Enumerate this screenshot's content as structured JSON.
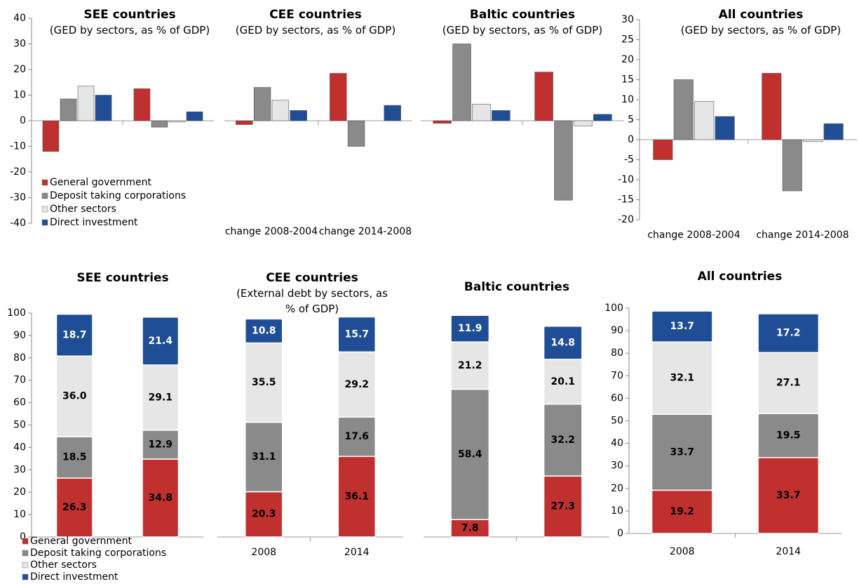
{
  "chart_data": [
    {
      "type": "grouped_bar",
      "title": "SEE countries",
      "subtitle": "(GED by sectors, as % of GDP)",
      "categories": [
        null,
        null
      ],
      "ylim": [
        -40,
        40
      ],
      "yticks": [
        -40,
        -30,
        -20,
        -10,
        0,
        10,
        20,
        30,
        40
      ],
      "legend": "lower left",
      "series": [
        {
          "name": "General government",
          "color": "#c0302e",
          "values": [
            -12,
            12.5
          ]
        },
        {
          "name": "Deposit taking corporations",
          "color": "#8a8a8a",
          "values": [
            8.5,
            -2.5
          ]
        },
        {
          "name": "Other sectors",
          "color": "#e6e6e6",
          "values": [
            13.5,
            -0.5
          ]
        },
        {
          "name": "Direct investment",
          "color": "#1f4e96",
          "values": [
            10,
            3.5
          ]
        }
      ]
    },
    {
      "type": "grouped_bar",
      "title": "CEE countries",
      "subtitle": "(GED by sectors, as % of GDP)",
      "categories": [
        "change 2008-2004",
        "change 2014-2008"
      ],
      "ylim": [
        -40,
        40
      ],
      "series": [
        {
          "color": "#c0302e",
          "values": [
            -1.5,
            18.5
          ]
        },
        {
          "color": "#8a8a8a",
          "values": [
            13,
            -10
          ]
        },
        {
          "color": "#e6e6e6",
          "values": [
            8,
            0
          ]
        },
        {
          "color": "#1f4e96",
          "values": [
            4,
            6
          ]
        }
      ]
    },
    {
      "type": "grouped_bar",
      "title": "Baltic countries",
      "subtitle": "(GED by sectors, as % of GDP)",
      "categories": [
        null,
        null
      ],
      "ylim": [
        -40,
        40
      ],
      "series": [
        {
          "color": "#c0302e",
          "values": [
            -1,
            19
          ]
        },
        {
          "color": "#8a8a8a",
          "values": [
            30,
            -31
          ]
        },
        {
          "color": "#e6e6e6",
          "values": [
            6.5,
            -2
          ]
        },
        {
          "color": "#1f4e96",
          "values": [
            4,
            2.5
          ]
        }
      ]
    },
    {
      "type": "grouped_bar",
      "title": "All countries",
      "subtitle": "(GED by sectors, as % of GDP)",
      "categories": [
        "change 2008-2004",
        "change 2014-2008"
      ],
      "ylim": [
        -20,
        30
      ],
      "yticks": [
        -20,
        -15,
        -10,
        -5,
        0,
        5,
        10,
        15,
        20,
        25,
        30
      ],
      "series": [
        {
          "color": "#c0302e",
          "values": [
            -5,
            16.6
          ]
        },
        {
          "color": "#8a8a8a",
          "values": [
            15,
            -12.8
          ]
        },
        {
          "color": "#e6e6e6",
          "values": [
            9.6,
            -0.5
          ]
        },
        {
          "color": "#1f4e96",
          "values": [
            5.8,
            4
          ]
        }
      ]
    },
    {
      "type": "stacked_bar",
      "title": "SEE countries",
      "categories": [
        null,
        null
      ],
      "ylim": [
        0,
        100
      ],
      "yticks": [
        0,
        10,
        20,
        30,
        40,
        50,
        60,
        70,
        80,
        90,
        100
      ],
      "legend": "lower left",
      "series": [
        {
          "name": "General government",
          "color": "#c0302e",
          "values": [
            26.3,
            34.8
          ],
          "value_labels": [
            "26.3",
            "34.8"
          ]
        },
        {
          "name": "Deposit taking corporations",
          "color": "#8a8a8a",
          "values": [
            18.5,
            12.9
          ],
          "value_labels": [
            "18.5",
            "12.9"
          ]
        },
        {
          "name": "Other sectors",
          "color": "#e6e6e6",
          "values": [
            36.0,
            29.1
          ],
          "value_labels": [
            "36.0",
            "29.1"
          ]
        },
        {
          "name": "Direct investment",
          "color": "#1f4e96",
          "values": [
            18.7,
            21.4
          ],
          "value_labels": [
            "18.7",
            "21.4"
          ]
        }
      ]
    },
    {
      "type": "stacked_bar",
      "title": "CEE countries",
      "subtitle": "(External debt by sectors, as % of GDP)",
      "categories": [
        "2008",
        "2014"
      ],
      "ylim": [
        0,
        100
      ],
      "series": [
        {
          "color": "#c0302e",
          "values": [
            20.3,
            36.1
          ],
          "value_labels": [
            "20.3",
            "36.1"
          ]
        },
        {
          "color": "#8a8a8a",
          "values": [
            31.1,
            17.6
          ],
          "value_labels": [
            "31.1",
            "17.6"
          ]
        },
        {
          "color": "#e6e6e6",
          "values": [
            35.5,
            29.2
          ],
          "value_labels": [
            "35.5",
            "29.2"
          ]
        },
        {
          "color": "#1f4e96",
          "values": [
            10.8,
            15.7
          ],
          "value_labels": [
            "10.8",
            "15.7"
          ]
        }
      ]
    },
    {
      "type": "stacked_bar",
      "title": "Baltic countries",
      "categories": [
        null,
        null
      ],
      "ylim": [
        0,
        100
      ],
      "series": [
        {
          "color": "#c0302e",
          "values": [
            7.8,
            27.3
          ],
          "value_labels": [
            "7.8",
            "27.3"
          ]
        },
        {
          "color": "#8a8a8a",
          "values": [
            58.4,
            32.2
          ],
          "value_labels": [
            "58.4",
            "32.2"
          ]
        },
        {
          "color": "#e6e6e6",
          "values": [
            21.2,
            20.1
          ],
          "value_labels": [
            "21.2",
            "20.1"
          ]
        },
        {
          "color": "#1f4e96",
          "values": [
            11.9,
            14.8
          ],
          "value_labels": [
            "11.9",
            "14.8"
          ]
        }
      ]
    },
    {
      "type": "stacked_bar",
      "title": "All countries",
      "categories": [
        "2008",
        "2014"
      ],
      "ylim": [
        0,
        100
      ],
      "yticks": [
        0,
        10,
        20,
        30,
        40,
        50,
        60,
        70,
        80,
        90,
        100
      ],
      "series": [
        {
          "color": "#c0302e",
          "values": [
            19.2,
            33.7
          ],
          "value_labels": [
            "19.2",
            "33.7"
          ]
        },
        {
          "color": "#8a8a8a",
          "values": [
            33.7,
            19.5
          ],
          "value_labels": [
            "33.7",
            "19.5"
          ]
        },
        {
          "color": "#e6e6e6",
          "values": [
            32.1,
            27.1
          ],
          "value_labels": [
            "32.1",
            "27.1"
          ]
        },
        {
          "color": "#1f4e96",
          "values": [
            13.7,
            17.2
          ],
          "value_labels": [
            "13.7",
            "17.2"
          ]
        }
      ]
    }
  ]
}
